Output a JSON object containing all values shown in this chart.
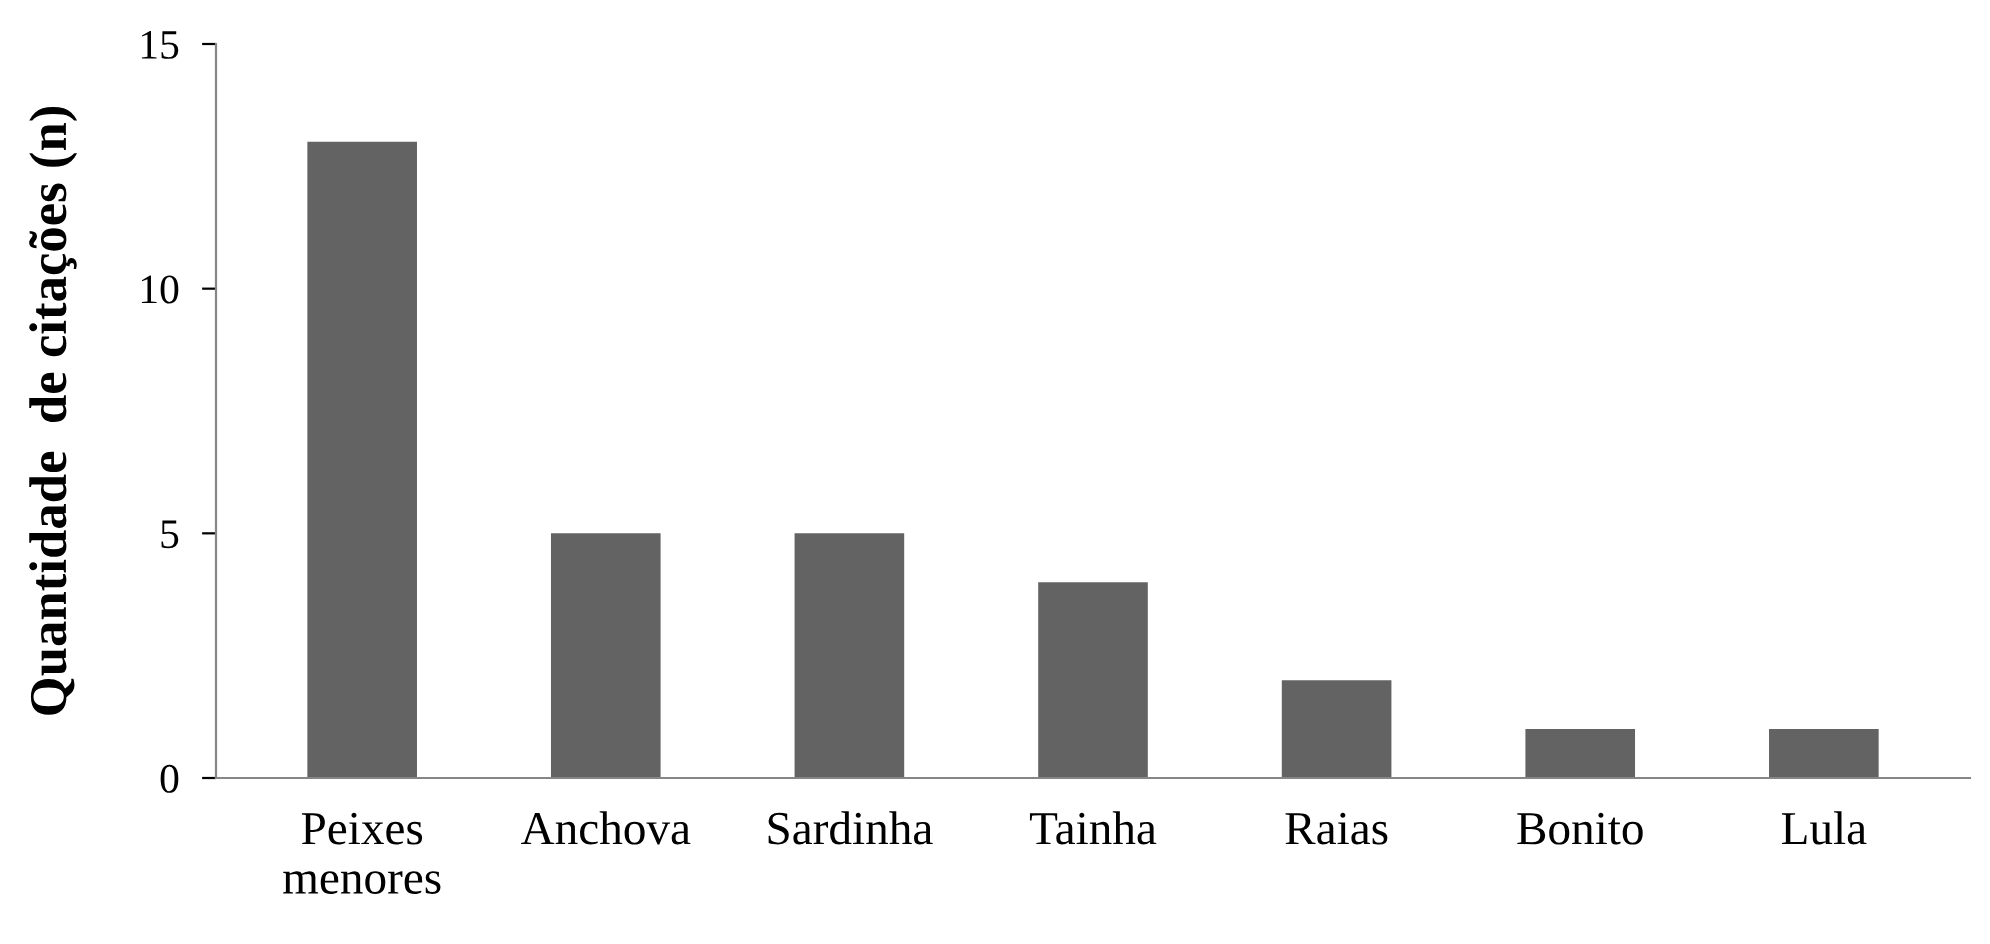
{
  "chart_data": {
    "type": "bar",
    "ylabel": "Quantidade  de citações (n)",
    "categories": [
      "Peixes\nmenores",
      "Anchova",
      "Sardinha",
      "Tainha",
      "Raias",
      "Bonito",
      "Lula"
    ],
    "values": [
      13,
      5,
      5,
      4,
      2,
      1,
      1
    ],
    "color": "#636363",
    "ylim": [
      0,
      15
    ],
    "yticks": [
      0,
      5,
      10,
      15
    ],
    "grid": false,
    "legend": false
  }
}
